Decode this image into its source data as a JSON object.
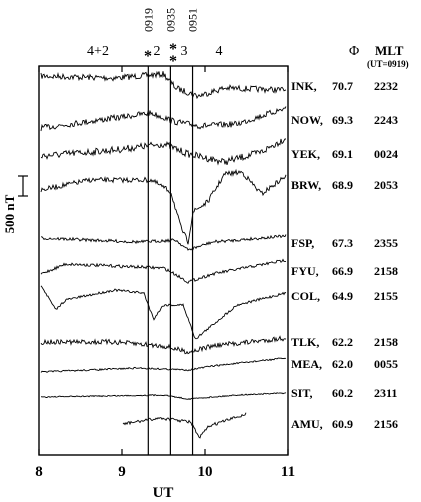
{
  "chart_data": {
    "type": "line",
    "xlabel": "UT",
    "x_ticks": [
      8,
      9,
      10,
      11
    ],
    "xlim": [
      8,
      11
    ],
    "scale_bar_label": "500 nT",
    "scale_bar_nT": 500,
    "event_times": [
      {
        "label": "0919",
        "ut": 9.317
      },
      {
        "label": "0935",
        "ut": 9.583
      },
      {
        "label": "0951",
        "ut": 9.85
      }
    ],
    "event_marks": [
      "*",
      "*",
      "*"
    ],
    "kp_labels": [
      "4+2",
      "2",
      "3",
      "4"
    ],
    "header_phi": "Φ",
    "header_mlt": "MLT",
    "header_mlt_note": "(UT=0919)",
    "stations": [
      {
        "code": "INK,",
        "lat": "70.7",
        "mlt": "2232"
      },
      {
        "code": "NOW,",
        "lat": "69.3",
        "mlt": "2243"
      },
      {
        "code": "YEK,",
        "lat": "69.1",
        "mlt": "0024"
      },
      {
        "code": "BRW,",
        "lat": "68.9",
        "mlt": "2053"
      },
      {
        "code": "FSP,",
        "lat": "67.3",
        "mlt": "2355"
      },
      {
        "code": "FYU,",
        "lat": "66.9",
        "mlt": "2158"
      },
      {
        "code": "COL,",
        "lat": "64.9",
        "mlt": "2155"
      },
      {
        "code": "TLK,",
        "lat": "62.2",
        "mlt": "2158"
      },
      {
        "code": "MEA,",
        "lat": "62.0",
        "mlt": "0055"
      },
      {
        "code": "SIT,",
        "lat": "60.2",
        "mlt": "2311"
      },
      {
        "code": "AMU,",
        "lat": "60.9",
        "mlt": "2156"
      }
    ]
  }
}
